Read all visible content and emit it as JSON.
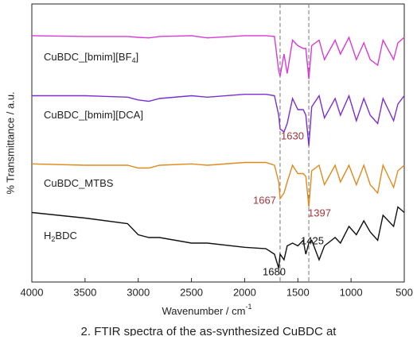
{
  "chart_data": {
    "type": "line",
    "xlabel": "Wavenumber / cm",
    "xlabel_sup": "-1",
    "ylabel": "% Transmittance / a.u.",
    "caption": "2. FTIR spectra of the as-synthesized CuBDC at",
    "xlim": [
      4000,
      500
    ],
    "ylim": [
      0,
      100
    ],
    "xticks": [
      4000,
      3500,
      3000,
      2500,
      2000,
      1500,
      1000,
      500
    ],
    "vlines": [
      1667,
      1397
    ],
    "x": [
      4000,
      3500,
      3100,
      3000,
      2900,
      2800,
      2500,
      2350,
      2000,
      1800,
      1720,
      1680,
      1667,
      1630,
      1600,
      1550,
      1500,
      1450,
      1425,
      1397,
      1370,
      1300,
      1250,
      1150,
      1100,
      1020,
      950,
      880,
      820,
      750,
      700,
      600,
      560,
      500
    ],
    "series": [
      {
        "name": "CuBDC_[bmim][BF",
        "name_sub": "4",
        "name_end": "]",
        "color": "#d63bd6",
        "values": [
          88.6,
          88.3,
          88.3,
          88.0,
          87.8,
          88.3,
          88.6,
          87.8,
          88.6,
          88.6,
          88.3,
          76,
          74,
          82,
          75,
          87,
          85,
          84,
          84,
          73,
          85,
          87,
          80,
          87,
          82,
          88,
          80,
          86,
          80,
          78,
          87,
          80,
          86,
          88
        ]
      },
      {
        "name": "CuBDC_[bmim][DCA]",
        "color": "#7a2fd0",
        "values": [
          67,
          67,
          66.5,
          65.5,
          65,
          66,
          67,
          66.5,
          67.5,
          67.5,
          67,
          60,
          55,
          54,
          57,
          66,
          62,
          62,
          60,
          49,
          63,
          67,
          59,
          66,
          60,
          67,
          58,
          66,
          60,
          57,
          66,
          58,
          64,
          67
        ]
      },
      {
        "name": "CuBDC_MTBS",
        "color": "#e08a1e",
        "values": [
          42.5,
          42,
          42,
          41,
          41,
          42,
          42.5,
          42,
          43,
          43,
          42,
          36,
          30,
          32,
          36,
          42,
          39,
          39,
          38,
          27,
          40,
          42,
          35,
          42,
          36,
          42,
          35,
          42,
          35,
          32,
          42,
          34,
          40,
          42
        ]
      },
      {
        "name": "H",
        "name_sub": "2",
        "name_end": "BDC",
        "color": "#111111",
        "values": [
          25,
          23,
          21,
          17,
          16,
          16,
          14,
          14,
          12.5,
          12,
          10,
          5,
          10,
          8,
          13,
          14,
          13,
          15,
          10,
          14,
          15,
          8,
          13,
          16,
          14,
          20,
          17,
          22,
          18,
          15,
          24,
          20,
          27,
          25
        ]
      }
    ],
    "annotations": [
      {
        "text": "1630",
        "color": "#a3333d"
      },
      {
        "text": "1667",
        "color": "#a3333d"
      },
      {
        "text": "1397",
        "color": "#a3333d"
      },
      {
        "text": "1680",
        "color": "#111111"
      },
      {
        "text": "1425",
        "color": "#111111"
      }
    ]
  }
}
